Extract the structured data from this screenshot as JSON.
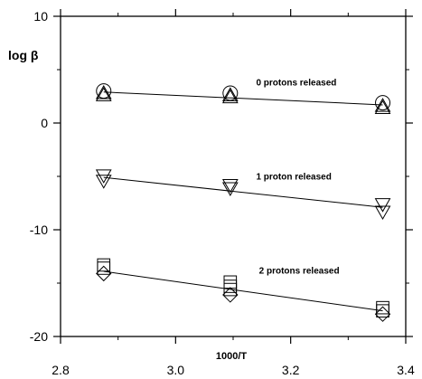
{
  "chart_data": {
    "type": "scatter",
    "title": "",
    "xlabel": "1000/T",
    "ylabel": "log β",
    "xlim": [
      2.8,
      3.4
    ],
    "ylim": [
      -20,
      10
    ],
    "xticks": [
      2.8,
      3.0,
      3.2,
      3.4
    ],
    "xtick_labels": [
      "2.8",
      "3.0",
      "3.2",
      "3.4"
    ],
    "yticks": [
      -20,
      -10,
      0,
      10
    ],
    "ytick_labels": [
      "-20",
      "-10",
      "0",
      "10"
    ],
    "grid": false,
    "legend": "none",
    "groups": [
      {
        "annotation": "0 protons released",
        "annotation_pos": [
          3.14,
          3.5
        ],
        "fit": [
          [
            2.875,
            2.9
          ],
          [
            3.36,
            1.7
          ]
        ],
        "points": [
          {
            "x": 2.875,
            "y": 3.0,
            "marker": "circle"
          },
          {
            "x": 2.875,
            "y": 2.8,
            "marker": "triangle-up"
          },
          {
            "x": 2.875,
            "y": 2.6,
            "marker": "triangle-up"
          },
          {
            "x": 3.095,
            "y": 2.8,
            "marker": "circle"
          },
          {
            "x": 3.095,
            "y": 2.6,
            "marker": "triangle-up"
          },
          {
            "x": 3.095,
            "y": 2.4,
            "marker": "triangle-up"
          },
          {
            "x": 3.36,
            "y": 1.9,
            "marker": "circle"
          },
          {
            "x": 3.36,
            "y": 1.6,
            "marker": "triangle-up"
          },
          {
            "x": 3.36,
            "y": 1.4,
            "marker": "triangle-up"
          }
        ]
      },
      {
        "annotation": "1 proton released",
        "annotation_pos": [
          3.14,
          -5.3
        ],
        "fit": [
          [
            2.875,
            -5.1
          ],
          [
            3.36,
            -7.9
          ]
        ],
        "points": [
          {
            "x": 2.875,
            "y": -4.9,
            "marker": "triangle-down"
          },
          {
            "x": 2.875,
            "y": -5.4,
            "marker": "triangle-down"
          },
          {
            "x": 3.095,
            "y": -5.8,
            "marker": "triangle-down"
          },
          {
            "x": 3.095,
            "y": -6.1,
            "marker": "triangle-down"
          },
          {
            "x": 3.36,
            "y": -7.6,
            "marker": "triangle-down"
          },
          {
            "x": 3.36,
            "y": -8.3,
            "marker": "triangle-down"
          }
        ]
      },
      {
        "annotation": "2 protons released",
        "annotation_pos": [
          3.145,
          -14.1
        ],
        "fit": [
          [
            2.875,
            -13.9
          ],
          [
            3.36,
            -17.6
          ]
        ],
        "points": [
          {
            "x": 2.875,
            "y": -13.3,
            "marker": "square"
          },
          {
            "x": 2.875,
            "y": -13.6,
            "marker": "square"
          },
          {
            "x": 2.875,
            "y": -14.1,
            "marker": "diamond"
          },
          {
            "x": 3.095,
            "y": -14.9,
            "marker": "square"
          },
          {
            "x": 3.095,
            "y": -15.3,
            "marker": "square"
          },
          {
            "x": 3.095,
            "y": -15.6,
            "marker": "square"
          },
          {
            "x": 3.095,
            "y": -16.1,
            "marker": "diamond"
          },
          {
            "x": 3.36,
            "y": -17.3,
            "marker": "square"
          },
          {
            "x": 3.36,
            "y": -17.6,
            "marker": "square"
          },
          {
            "x": 3.36,
            "y": -17.9,
            "marker": "diamond"
          }
        ]
      }
    ]
  }
}
